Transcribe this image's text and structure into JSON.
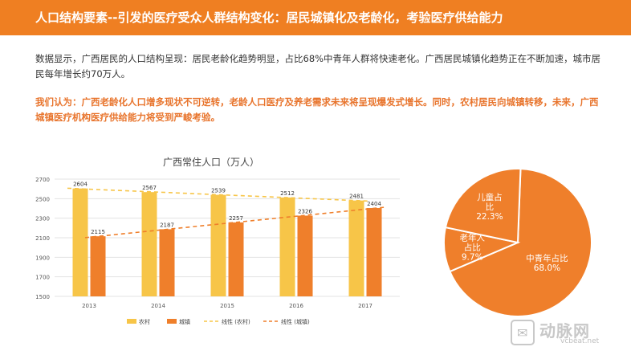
{
  "header": {
    "title": "人口结构要素--引发的医疗受众人群结构变化：居民城镇化及老龄化，考验医疗供给能力"
  },
  "body": {
    "paragraph": "数据显示，广西居民的人口结构呈现：居民老龄化趋势明显，占比68%中青年人群将快速老化。广西居民城镇化趋势正在不断加速，城市居民每年增长约70万人。",
    "opinion": "我们认为：广西老龄化人口增多现状不可逆转，老龄人口医疗及养老需求未来将呈现爆发式增长。同时，农村居民向城镇转移，未来，广西城镇医疗机构医疗供给能力将受到严峻考验。"
  },
  "chart_data": [
    {
      "type": "bar",
      "title": "广西常住人口（万人）",
      "categories": [
        "2013",
        "2014",
        "2015",
        "2016",
        "2017"
      ],
      "series": [
        {
          "name": "农村",
          "values": [
            2604,
            2567,
            2539,
            2512,
            2481
          ],
          "color": "#f7c548"
        },
        {
          "name": "城镇",
          "values": [
            2115,
            2187,
            2257,
            2326,
            2404
          ],
          "color": "#ef7f2b"
        }
      ],
      "trendlines": [
        {
          "name": "线性 (农村)",
          "of": "农村",
          "color": "#f7c548",
          "style": "dashed"
        },
        {
          "name": "线性 (城镇)",
          "of": "城镇",
          "color": "#ef7f2b",
          "style": "dashed"
        }
      ],
      "yticks": [
        1500,
        1700,
        1900,
        2100,
        2300,
        2500,
        2700
      ],
      "ylim": [
        1500,
        2700
      ],
      "grid": true,
      "legend": "bottom",
      "data_labels": true
    },
    {
      "type": "pie",
      "slices": [
        {
          "label": "中青年占比",
          "value": 68.0,
          "display": "68.0%",
          "color": "#ef7f2b"
        },
        {
          "label": "老年人占比",
          "value": 9.7,
          "display": "9.7%",
          "color": "#ef7f2b"
        },
        {
          "label": "儿童占比",
          "value": 22.3,
          "display": "22.3%",
          "color": "#ef7f2b"
        }
      ],
      "label_color": "#ffffff",
      "border_color": "#ffffff"
    }
  ],
  "watermark": {
    "icon": "wechat-icon",
    "text": "动脉网",
    "domain": "vcbeat.net"
  }
}
